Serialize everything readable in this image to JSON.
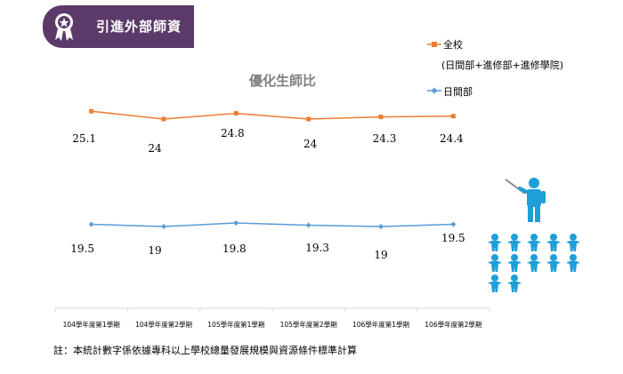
{
  "header": {
    "title": "引進外部師資",
    "badge_icon": "award-ribbon-icon"
  },
  "footnote": "註：本統計數字係依據專科以上學校總量發展規模與資源條件標準計算",
  "illustration_icon": "teacher-with-students-icon",
  "colors": {
    "series_1": "#ed7d31",
    "series_2": "#5b9bd5",
    "banner": "#5b3a6a",
    "icon": "#1e9fd8"
  },
  "chart_data": {
    "type": "line",
    "title": "優化生師比",
    "xlabel": "",
    "ylabel": "",
    "categories": [
      "104學年度第1學期",
      "104學年度第2學期",
      "105學年度第1學期",
      "105學年度第2學期",
      "106學年度第1學期",
      "106學年度第2學期"
    ],
    "series": [
      {
        "name": "全校",
        "name_sub": "(日間部+進修部+進修學院)",
        "values": [
          25.1,
          24,
          24.8,
          24,
          24.3,
          24.4
        ],
        "color": "#ed7d31",
        "marker": "square"
      },
      {
        "name": "日間部",
        "values": [
          19.5,
          19,
          19.8,
          19.3,
          19,
          19.5
        ],
        "color": "#5b9bd5",
        "marker": "diamond"
      }
    ],
    "grid": false,
    "legend_position": "top-right"
  }
}
